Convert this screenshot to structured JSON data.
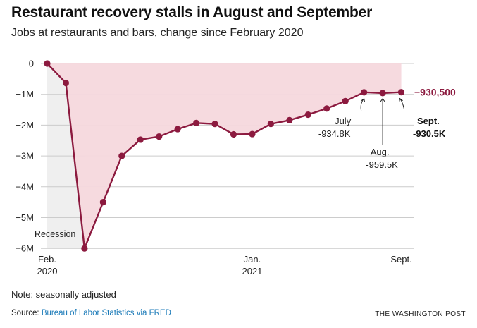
{
  "title": "Restaurant recovery stalls in August and September",
  "subtitle": "Jobs at restaurants and bars, change since February 2020",
  "colors": {
    "line": "#8c1a3f",
    "fill": "#f6d8dd",
    "recession_fill": "#efefef",
    "grid": "#cccccc"
  },
  "chart_data": {
    "type": "line",
    "x_unit": "month",
    "x": [
      "2020-02",
      "2020-03",
      "2020-04",
      "2020-05",
      "2020-06",
      "2020-07",
      "2020-08",
      "2020-09",
      "2020-10",
      "2020-11",
      "2020-12",
      "2021-01",
      "2021-02",
      "2021-03",
      "2021-04",
      "2021-05",
      "2021-06",
      "2021-07",
      "2021-08",
      "2021-09"
    ],
    "values": [
      0,
      -0.63,
      -6.0,
      -4.5,
      -3.0,
      -2.47,
      -2.37,
      -2.13,
      -1.93,
      -1.96,
      -2.3,
      -2.29,
      -1.96,
      -1.84,
      -1.66,
      -1.46,
      -1.22,
      -0.9348,
      -0.9595,
      -0.9305
    ],
    "y_unit": "millions of jobs",
    "ylim": [
      -6,
      0
    ],
    "y_ticks": [
      0,
      -1,
      -2,
      -3,
      -4,
      -5,
      -6
    ],
    "y_tick_labels": [
      "0",
      "−1M",
      "−2M",
      "−3M",
      "−4M",
      "−5M",
      "−6M"
    ],
    "x_tick_labels": [
      {
        "x": "2020-02",
        "line1": "Feb.",
        "line2": "2020"
      },
      {
        "x": "2021-01",
        "line1": "Jan.",
        "line2": "2021"
      },
      {
        "x": "2021-09",
        "line1": "Sept.",
        "line2": ""
      }
    ],
    "shaded_regions": [
      {
        "label": "Recession",
        "start": "2020-02",
        "end": "2020-04"
      }
    ],
    "annotations": [
      {
        "x": "2021-07",
        "line1": "July",
        "line2": "-934.8K"
      },
      {
        "x": "2021-08",
        "line1": "Aug.",
        "line2": "-959.5K"
      },
      {
        "x": "2021-09",
        "line1": "Sept.",
        "line2": "-930.5K"
      }
    ],
    "end_label": "−930,500"
  },
  "note": "Note: seasonally adjusted",
  "source_prefix": "Source: ",
  "source_link": "Bureau of Labor Statistics via FRED",
  "credit": "THE WASHINGTON POST"
}
